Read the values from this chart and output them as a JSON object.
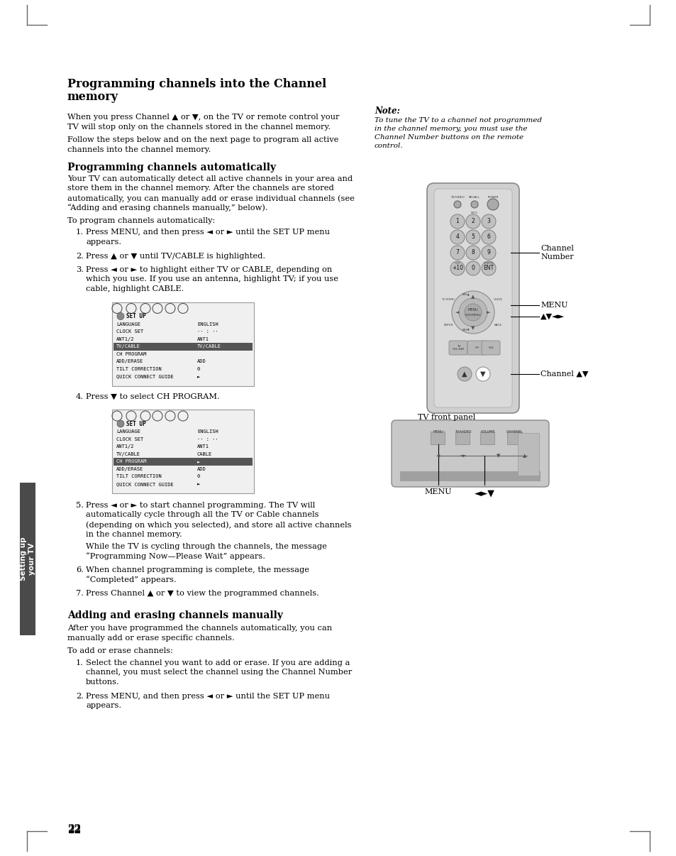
{
  "bg_color": "#ffffff",
  "page_number": "22",
  "main_title_line1": "Programming channels into the Channel",
  "main_title_line2": "memory",
  "section1_title": "Programming channels automatically",
  "section2_title": "Adding and erasing channels manually",
  "note_title": "Note:",
  "note_lines": [
    "To tune the TV to a channel not programmed",
    "in the channel memory, you must use the",
    "Channel Number buttons on the remote",
    "control."
  ],
  "intro_line1": "When you press Channel ▲ or ▼, on the TV or remote control your",
  "intro_line2": "TV will stop only on the channels stored in the channel memory.",
  "intro_line3": "Follow the steps below and on the next page to program all active",
  "intro_line4": "channels into the channel memory.",
  "auto_para_lines": [
    "Your TV can automatically detect all active channels in your area and",
    "store them in the channel memory. After the channels are stored",
    "automatically, you can manually add or erase individual channels (see",
    "“Adding and erasing channels manually,” below)."
  ],
  "auto_steps_intro": "To program channels automatically:",
  "step1_lines": [
    "Press MENU, and then press ◄ or ► until the SET UP menu",
    "appears."
  ],
  "step2_lines": [
    "Press ▲ or ▼ until TV/CABLE is highlighted."
  ],
  "step3_lines": [
    "Press ◄ or ► to highlight either TV or CABLE, depending on",
    "which you use. If you use an antenna, highlight TV; if you use",
    "cable, highlight CABLE."
  ],
  "step4_lines": [
    "Press ▼ to select CH PROGRAM."
  ],
  "step5_lines": [
    "Press ◄ or ► to start channel programming. The TV will",
    "automatically cycle through all the TV or Cable channels",
    "(depending on which you selected), and store all active channels",
    "in the channel memory."
  ],
  "step5b_lines": [
    "While the TV is cycling through the channels, the message",
    "“Programming Now—Please Wait” appears."
  ],
  "step6_lines": [
    "When channel programming is complete, the message",
    "“Completed” appears."
  ],
  "step7_lines": [
    "Press Channel ▲ or ▼ to view the programmed channels."
  ],
  "section2_para_lines": [
    "After you have programmed the channels automatically, you can",
    "manually add or erase specific channels."
  ],
  "manual_steps_intro": "To add or erase channels:",
  "manual_step1_lines": [
    "Select the channel you want to add or erase. If you are adding a",
    "channel, you must select the channel using the Channel Number",
    "buttons."
  ],
  "manual_step2_lines": [
    "Press MENU, and then press ◄ or ► until the SET UP menu",
    "appears."
  ],
  "sidebar_text": "Setting up\nyour TV",
  "menu1_rows": [
    [
      "LANGUAGE",
      "ENGLISH"
    ],
    [
      "CLOCK SET",
      "·· : ··"
    ],
    [
      "ANT1/2",
      "ANT1"
    ],
    [
      "TV/CABLE",
      "TV/CABLE"
    ],
    [
      "CH PROGRAM",
      ""
    ],
    [
      "ADD/ERASE",
      "ADD"
    ],
    [
      "TILT CORRECTION",
      "0"
    ],
    [
      "QUICK CONNECT GUIDE",
      "►"
    ]
  ],
  "menu1_highlight_row": 3,
  "menu2_rows": [
    [
      "LANGUAGE",
      "ENGLISH"
    ],
    [
      "CLOCK SET",
      "·· : ··"
    ],
    [
      "ANT1/2",
      "ANT1"
    ],
    [
      "TV/CABLE",
      "CABLE"
    ],
    [
      "CH PROGRAM",
      "►"
    ],
    [
      "ADD/ERASE",
      "ADD"
    ],
    [
      "TILT CORRECTION",
      "0"
    ],
    [
      "QUICK CONNECT GUIDE",
      "►"
    ]
  ],
  "menu2_highlight_row": 4,
  "channel_number_label": "Channel\nNumber",
  "menu_label": "MENU",
  "nav_label": "▲▼◄►",
  "channel_updown_label": "Channel ▲▼",
  "tv_front_panel": "TV front panel",
  "menu_bottom_label": "MENU",
  "arrows_bottom": "◄►▼"
}
